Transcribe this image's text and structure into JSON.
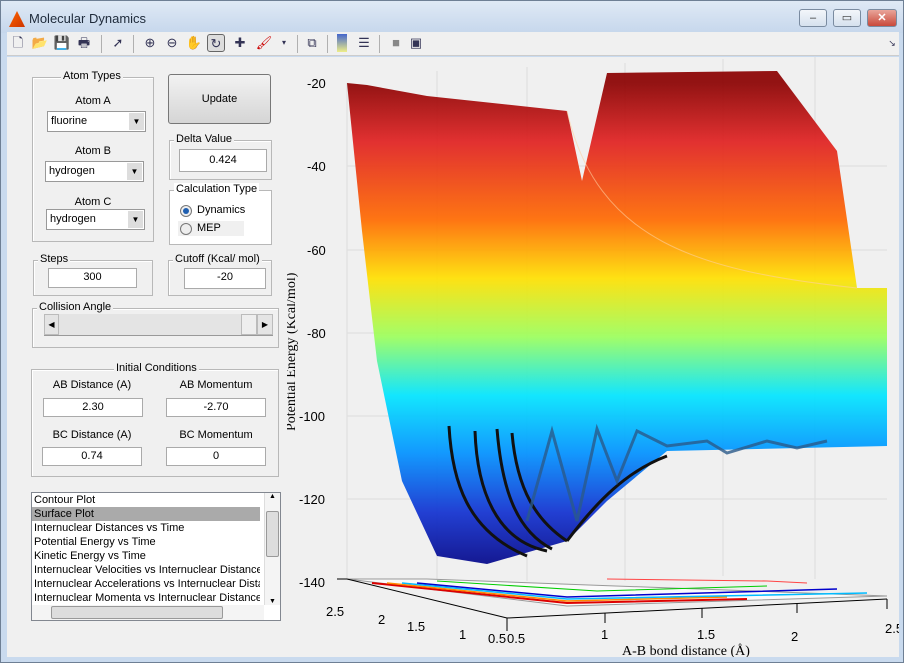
{
  "window": {
    "title": "Molecular Dynamics",
    "controls": [
      "minimize",
      "maximize",
      "close"
    ]
  },
  "toolbar": {
    "icons": [
      "new-file-icon",
      "open-folder-icon",
      "save-icon",
      "print-icon",
      "pointer-icon",
      "zoom-in-icon",
      "zoom-out-icon",
      "pan-hand-icon",
      "rotate-3d-icon",
      "data-cursor-icon",
      "brush-icon",
      "link-plot-icon",
      "colorbar-icon",
      "legend-icon",
      "hide-plot-tools-icon",
      "show-plot-tools-icon"
    ]
  },
  "atom_types": {
    "title": "Atom Types",
    "atom_a_label": "Atom A",
    "atom_a": "fluorine",
    "atom_b_label": "Atom B",
    "atom_b": "hydrogen",
    "atom_c_label": "Atom C",
    "atom_c": "hydrogen"
  },
  "update_label": "Update",
  "delta": {
    "title": "Delta Value",
    "value": "0.424"
  },
  "calc_type": {
    "title": "Calculation Type",
    "options": [
      "Dynamics",
      "MEP"
    ],
    "selected": "Dynamics"
  },
  "steps": {
    "title": "Steps",
    "value": "300"
  },
  "cutoff": {
    "title": "Cutoff (Kcal/ mol)",
    "value": "-20"
  },
  "collision_angle": {
    "title": "Collision Angle",
    "value_fraction": 1.0
  },
  "initial": {
    "title": "Initial Conditions",
    "ab_distance_label": "AB Distance (A)",
    "ab_distance": "2.30",
    "ab_momentum_label": "AB Momentum",
    "ab_momentum": "-2.70",
    "bc_distance_label": "BC Distance (A)",
    "bc_distance": "0.74",
    "bc_momentum_label": "BC Momentum",
    "bc_momentum": "0"
  },
  "plot_list": {
    "items": [
      "Contour Plot",
      "Surface Plot",
      "Internuclear Distances vs Time",
      "Potential Energy vs Time",
      "Kinetic Energy vs Time",
      "Internuclear Velocities vs Internuclear Distance",
      "Internuclear Accelerations vs Internuclear Distance",
      "Internuclear Momenta vs Internuclear Distance"
    ],
    "selected": "Surface Plot"
  },
  "chart_data": {
    "type": "surface",
    "zlabel": "Potential Energy (Kcal/mol)",
    "xlabel": "A-B bond distance (Å)",
    "zticks": [
      "-20",
      "-40",
      "-60",
      "-80",
      "-100",
      "-120",
      "-140"
    ],
    "xticks": [
      "0.5",
      "1",
      "1.5",
      "2",
      "2.5"
    ],
    "yticks": [
      "2.5",
      "2",
      "1.5",
      "1",
      "0.5"
    ],
    "zlim": [
      -140,
      -20
    ],
    "xlim": [
      0.5,
      2.5
    ],
    "ylim": [
      0.5,
      2.5
    ],
    "colormap": "jet",
    "grid": true
  }
}
